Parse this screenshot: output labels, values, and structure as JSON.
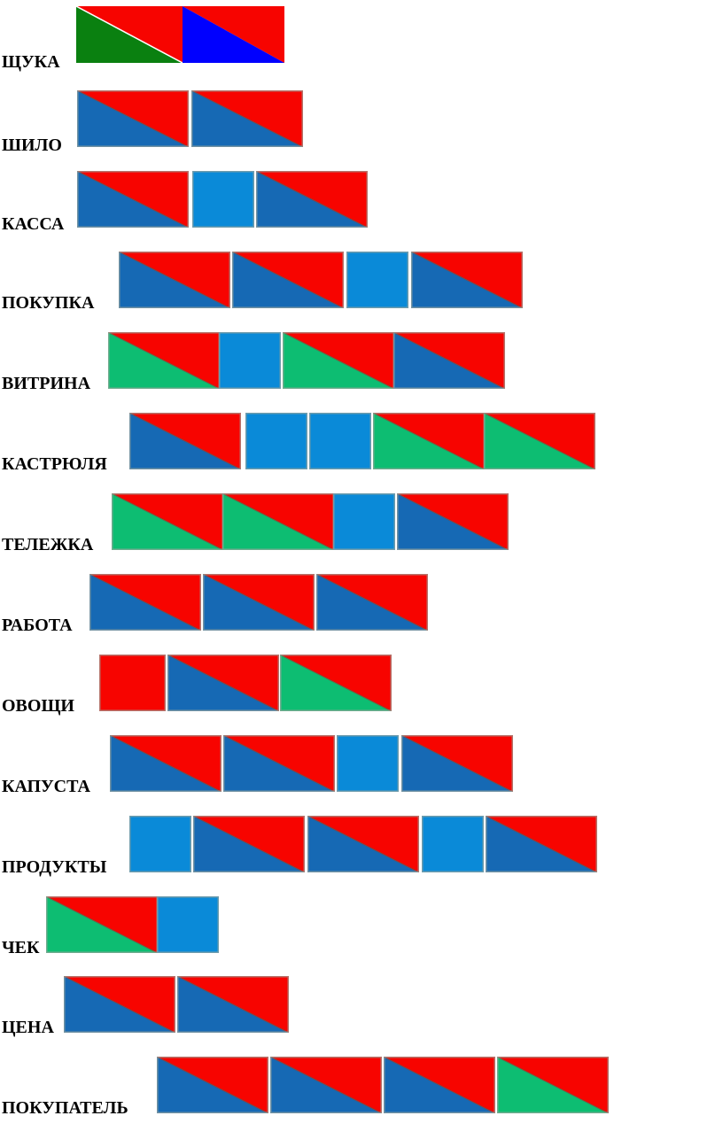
{
  "colors": {
    "red": "#f70400",
    "blue": "#1669b4",
    "green": "#0dbd72",
    "light_blue": "#0a8ad8",
    "dark_green": "#0a8010",
    "bright_blue": "#0000ff"
  },
  "legend_row": {
    "word": "ЩУКА",
    "blocks": [
      "hard-consonant-legend",
      "soft-consonant-legend"
    ]
  },
  "words": [
    {
      "word": "ШИЛО",
      "blocks": [
        "hard",
        "hard"
      ]
    },
    {
      "word": "КАССА",
      "blocks": [
        "hard",
        "vowel",
        "hard"
      ]
    },
    {
      "word": "ПОКУПКА",
      "blocks": [
        "hard",
        "hard",
        "vowel",
        "hard"
      ]
    },
    {
      "word": "ВИТРИНА",
      "blocks": [
        "soft",
        "vowel",
        "soft",
        "hard"
      ]
    },
    {
      "word": "КАСТРЮЛЯ",
      "blocks": [
        "hard",
        "vowel",
        "vowel",
        "soft",
        "soft"
      ]
    },
    {
      "word": "ТЕЛЕЖКА",
      "blocks": [
        "soft",
        "soft",
        "vowel",
        "hard"
      ]
    },
    {
      "word": "РАБОТА",
      "blocks": [
        "hard",
        "hard",
        "hard"
      ]
    },
    {
      "word": "ОВОЩИ",
      "blocks": [
        "red",
        "hard",
        "soft"
      ]
    },
    {
      "word": "КАПУСТА",
      "blocks": [
        "hard",
        "hard",
        "vowel",
        "hard"
      ]
    },
    {
      "word": "ПРОДУКТЫ",
      "blocks": [
        "vowel",
        "hard",
        "hard",
        "vowel",
        "hard"
      ]
    },
    {
      "word": "ЧЕК",
      "blocks": [
        "soft",
        "vowel"
      ]
    },
    {
      "word": "ЦЕНА",
      "blocks": [
        "hard",
        "hard"
      ]
    },
    {
      "word": "ПОКУПАТЕЛЬ",
      "blocks": [
        "hard",
        "hard",
        "hard",
        "soft"
      ]
    }
  ]
}
